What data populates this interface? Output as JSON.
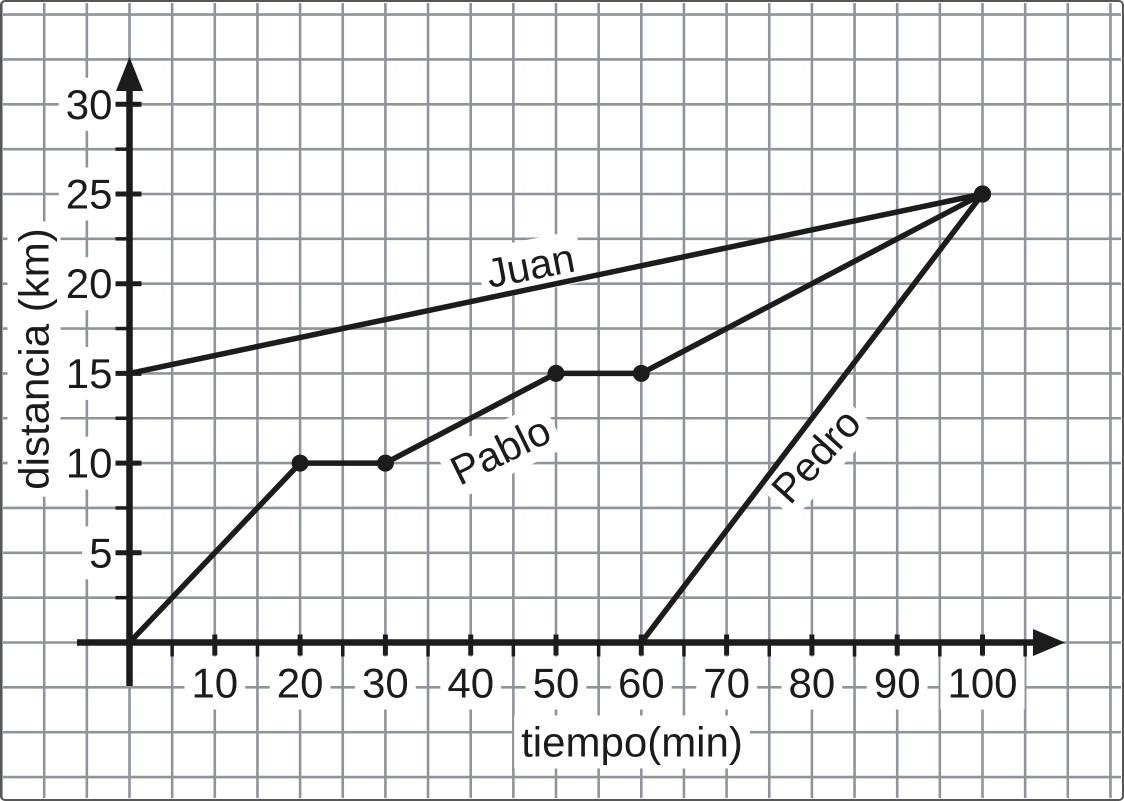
{
  "chart_data": {
    "type": "line",
    "title": "",
    "xlabel": "tiempo(min)",
    "ylabel": "distancia (km)",
    "x_ticks": [
      10,
      20,
      30,
      40,
      50,
      60,
      70,
      80,
      90,
      100
    ],
    "y_ticks": [
      5,
      10,
      15,
      20,
      25,
      30
    ],
    "x_minor_step": 5,
    "y_minor_step": 2.5,
    "xlim": [
      0,
      107
    ],
    "ylim": [
      0,
      32.5
    ],
    "grid": true,
    "legend_position": "inline-labels",
    "series": [
      {
        "name": "Juan",
        "points": [
          [
            0,
            15
          ],
          [
            100,
            25
          ]
        ],
        "markers": [
          [
            100,
            25
          ]
        ],
        "label": {
          "x": 47,
          "y": 21,
          "rotation": -11
        }
      },
      {
        "name": "Pablo",
        "points": [
          [
            0,
            0
          ],
          [
            20,
            10
          ],
          [
            30,
            10
          ],
          [
            50,
            15
          ],
          [
            60,
            15
          ],
          [
            100,
            25
          ]
        ],
        "markers": [
          [
            20,
            10
          ],
          [
            30,
            10
          ],
          [
            50,
            15
          ],
          [
            60,
            15
          ],
          [
            100,
            25
          ]
        ],
        "label": {
          "x": 43.5,
          "y": 10.7,
          "rotation": -26
        }
      },
      {
        "name": "Pedro",
        "points": [
          [
            60,
            0
          ],
          [
            100,
            25
          ]
        ],
        "markers": [
          [
            100,
            25
          ]
        ],
        "label": {
          "x": 80.5,
          "y": 10.4,
          "rotation": -48
        }
      }
    ],
    "colors": {
      "line": "#1c1c1c",
      "grid": "#8e949b",
      "text": "#1b1b1b",
      "halo": "#ffffff",
      "background": "#ffffff",
      "border": "#565656"
    }
  }
}
